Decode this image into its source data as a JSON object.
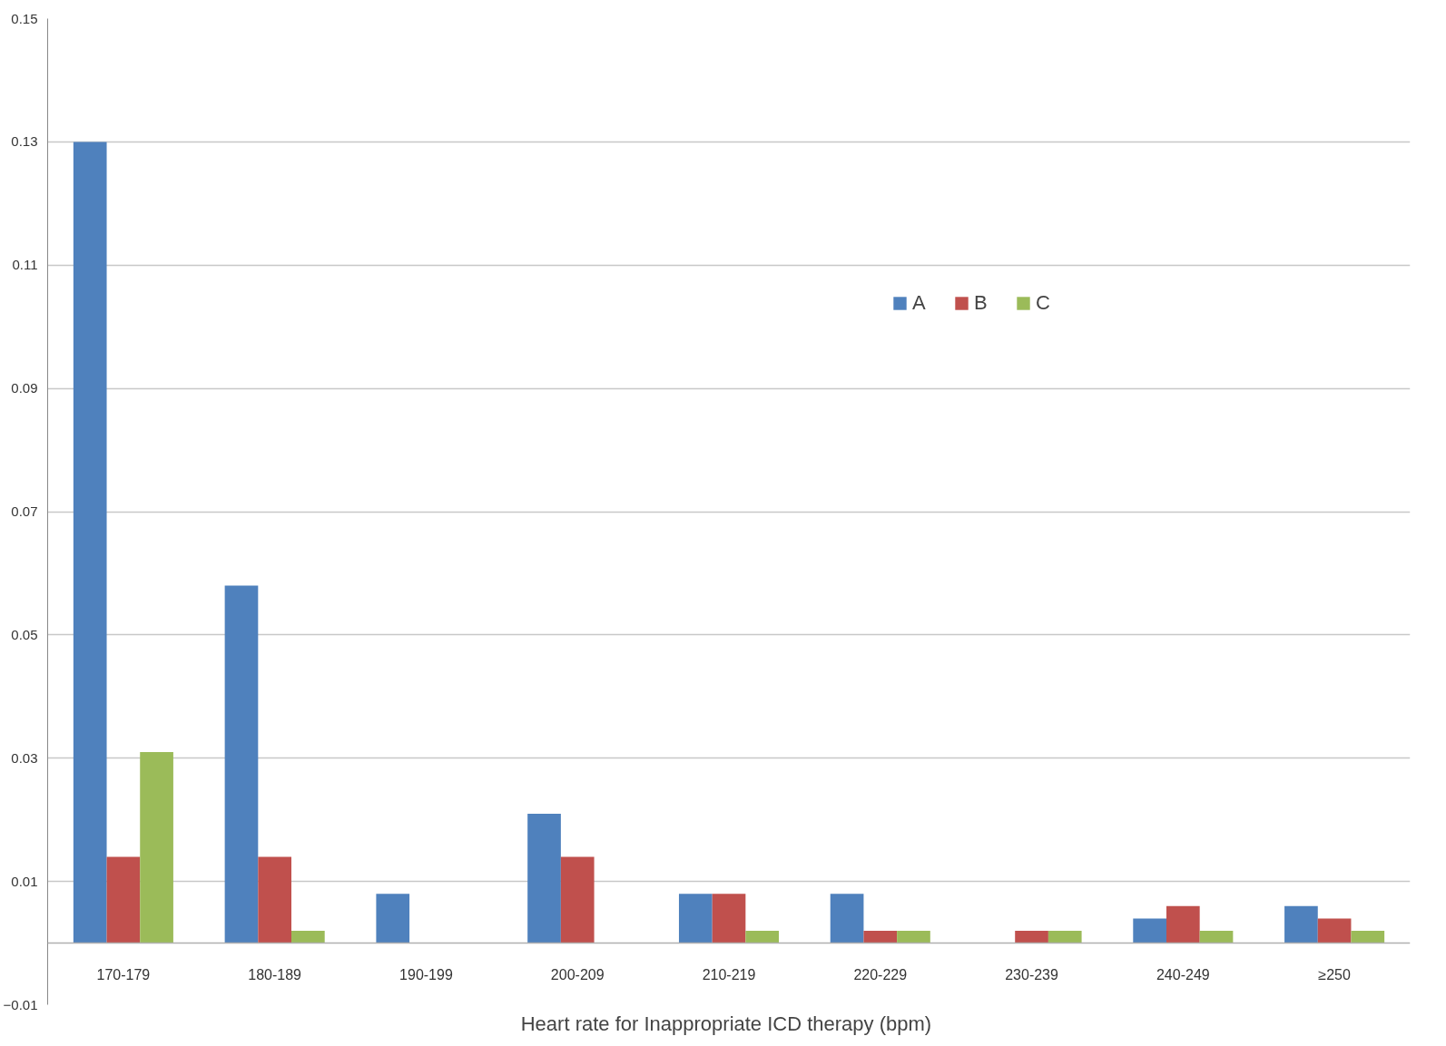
{
  "chart_data": {
    "type": "bar",
    "xlabel": "Heart rate for Inappropriate ICD therapy  (bpm)",
    "categories": [
      "170-179",
      "180-189",
      "190-199",
      "200-209",
      "210-219",
      "220-229",
      "230-239",
      "240-249",
      "≥250"
    ],
    "series": [
      {
        "name": "A",
        "color": "#4f81bd",
        "values": [
          0.13,
          0.058,
          0.008,
          0.021,
          0.008,
          0.008,
          0,
          0.004,
          0.006
        ]
      },
      {
        "name": "B",
        "color": "#c0504d",
        "values": [
          0.014,
          0.014,
          0,
          0.014,
          0.008,
          0.002,
          0.002,
          0.006,
          0.004
        ]
      },
      {
        "name": "C",
        "color": "#9bbb59",
        "values": [
          0.031,
          0.002,
          0,
          0,
          0.002,
          0.002,
          0.002,
          0.002,
          0.002
        ]
      }
    ],
    "ylim": [
      -0.01,
      0.15
    ],
    "yticks": [
      -0.01,
      0.01,
      0.03,
      0.05,
      0.07,
      0.09,
      0.11,
      0.13,
      0.15
    ],
    "grid": "y",
    "legend": "top"
  }
}
